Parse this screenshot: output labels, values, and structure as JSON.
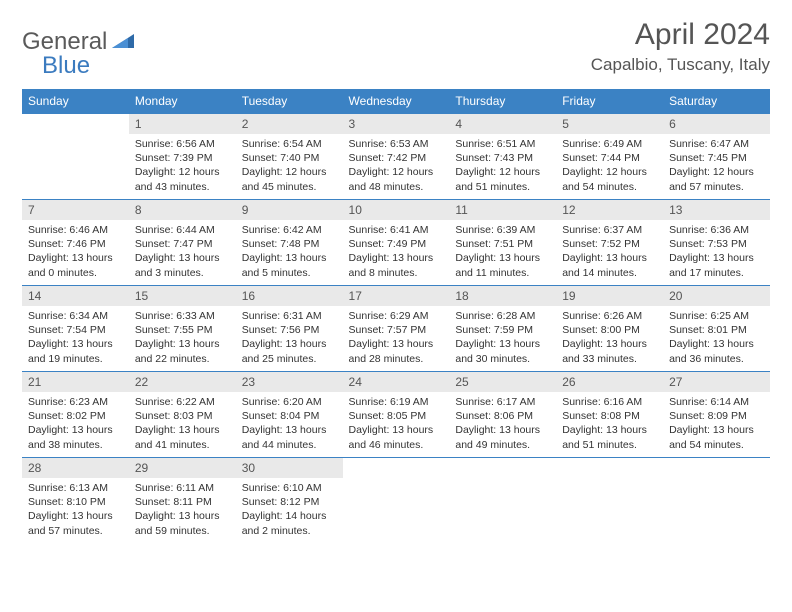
{
  "brand": {
    "part1": "General",
    "part2": "Blue"
  },
  "title": "April 2024",
  "location": "Capalbio, Tuscany, Italy",
  "colors": {
    "header_bg": "#3b82c4",
    "header_text": "#ffffff",
    "daynum_bg": "#e9e9e9",
    "border": "#3b82c4",
    "text": "#333333",
    "title_color": "#555555"
  },
  "weekdays": [
    "Sunday",
    "Monday",
    "Tuesday",
    "Wednesday",
    "Thursday",
    "Friday",
    "Saturday"
  ],
  "start_offset": 1,
  "days": [
    {
      "n": "1",
      "sr": "Sunrise: 6:56 AM",
      "ss": "Sunset: 7:39 PM",
      "dl": "Daylight: 12 hours and 43 minutes."
    },
    {
      "n": "2",
      "sr": "Sunrise: 6:54 AM",
      "ss": "Sunset: 7:40 PM",
      "dl": "Daylight: 12 hours and 45 minutes."
    },
    {
      "n": "3",
      "sr": "Sunrise: 6:53 AM",
      "ss": "Sunset: 7:42 PM",
      "dl": "Daylight: 12 hours and 48 minutes."
    },
    {
      "n": "4",
      "sr": "Sunrise: 6:51 AM",
      "ss": "Sunset: 7:43 PM",
      "dl": "Daylight: 12 hours and 51 minutes."
    },
    {
      "n": "5",
      "sr": "Sunrise: 6:49 AM",
      "ss": "Sunset: 7:44 PM",
      "dl": "Daylight: 12 hours and 54 minutes."
    },
    {
      "n": "6",
      "sr": "Sunrise: 6:47 AM",
      "ss": "Sunset: 7:45 PM",
      "dl": "Daylight: 12 hours and 57 minutes."
    },
    {
      "n": "7",
      "sr": "Sunrise: 6:46 AM",
      "ss": "Sunset: 7:46 PM",
      "dl": "Daylight: 13 hours and 0 minutes."
    },
    {
      "n": "8",
      "sr": "Sunrise: 6:44 AM",
      "ss": "Sunset: 7:47 PM",
      "dl": "Daylight: 13 hours and 3 minutes."
    },
    {
      "n": "9",
      "sr": "Sunrise: 6:42 AM",
      "ss": "Sunset: 7:48 PM",
      "dl": "Daylight: 13 hours and 5 minutes."
    },
    {
      "n": "10",
      "sr": "Sunrise: 6:41 AM",
      "ss": "Sunset: 7:49 PM",
      "dl": "Daylight: 13 hours and 8 minutes."
    },
    {
      "n": "11",
      "sr": "Sunrise: 6:39 AM",
      "ss": "Sunset: 7:51 PM",
      "dl": "Daylight: 13 hours and 11 minutes."
    },
    {
      "n": "12",
      "sr": "Sunrise: 6:37 AM",
      "ss": "Sunset: 7:52 PM",
      "dl": "Daylight: 13 hours and 14 minutes."
    },
    {
      "n": "13",
      "sr": "Sunrise: 6:36 AM",
      "ss": "Sunset: 7:53 PM",
      "dl": "Daylight: 13 hours and 17 minutes."
    },
    {
      "n": "14",
      "sr": "Sunrise: 6:34 AM",
      "ss": "Sunset: 7:54 PM",
      "dl": "Daylight: 13 hours and 19 minutes."
    },
    {
      "n": "15",
      "sr": "Sunrise: 6:33 AM",
      "ss": "Sunset: 7:55 PM",
      "dl": "Daylight: 13 hours and 22 minutes."
    },
    {
      "n": "16",
      "sr": "Sunrise: 6:31 AM",
      "ss": "Sunset: 7:56 PM",
      "dl": "Daylight: 13 hours and 25 minutes."
    },
    {
      "n": "17",
      "sr": "Sunrise: 6:29 AM",
      "ss": "Sunset: 7:57 PM",
      "dl": "Daylight: 13 hours and 28 minutes."
    },
    {
      "n": "18",
      "sr": "Sunrise: 6:28 AM",
      "ss": "Sunset: 7:59 PM",
      "dl": "Daylight: 13 hours and 30 minutes."
    },
    {
      "n": "19",
      "sr": "Sunrise: 6:26 AM",
      "ss": "Sunset: 8:00 PM",
      "dl": "Daylight: 13 hours and 33 minutes."
    },
    {
      "n": "20",
      "sr": "Sunrise: 6:25 AM",
      "ss": "Sunset: 8:01 PM",
      "dl": "Daylight: 13 hours and 36 minutes."
    },
    {
      "n": "21",
      "sr": "Sunrise: 6:23 AM",
      "ss": "Sunset: 8:02 PM",
      "dl": "Daylight: 13 hours and 38 minutes."
    },
    {
      "n": "22",
      "sr": "Sunrise: 6:22 AM",
      "ss": "Sunset: 8:03 PM",
      "dl": "Daylight: 13 hours and 41 minutes."
    },
    {
      "n": "23",
      "sr": "Sunrise: 6:20 AM",
      "ss": "Sunset: 8:04 PM",
      "dl": "Daylight: 13 hours and 44 minutes."
    },
    {
      "n": "24",
      "sr": "Sunrise: 6:19 AM",
      "ss": "Sunset: 8:05 PM",
      "dl": "Daylight: 13 hours and 46 minutes."
    },
    {
      "n": "25",
      "sr": "Sunrise: 6:17 AM",
      "ss": "Sunset: 8:06 PM",
      "dl": "Daylight: 13 hours and 49 minutes."
    },
    {
      "n": "26",
      "sr": "Sunrise: 6:16 AM",
      "ss": "Sunset: 8:08 PM",
      "dl": "Daylight: 13 hours and 51 minutes."
    },
    {
      "n": "27",
      "sr": "Sunrise: 6:14 AM",
      "ss": "Sunset: 8:09 PM",
      "dl": "Daylight: 13 hours and 54 minutes."
    },
    {
      "n": "28",
      "sr": "Sunrise: 6:13 AM",
      "ss": "Sunset: 8:10 PM",
      "dl": "Daylight: 13 hours and 57 minutes."
    },
    {
      "n": "29",
      "sr": "Sunrise: 6:11 AM",
      "ss": "Sunset: 8:11 PM",
      "dl": "Daylight: 13 hours and 59 minutes."
    },
    {
      "n": "30",
      "sr": "Sunrise: 6:10 AM",
      "ss": "Sunset: 8:12 PM",
      "dl": "Daylight: 14 hours and 2 minutes."
    }
  ]
}
